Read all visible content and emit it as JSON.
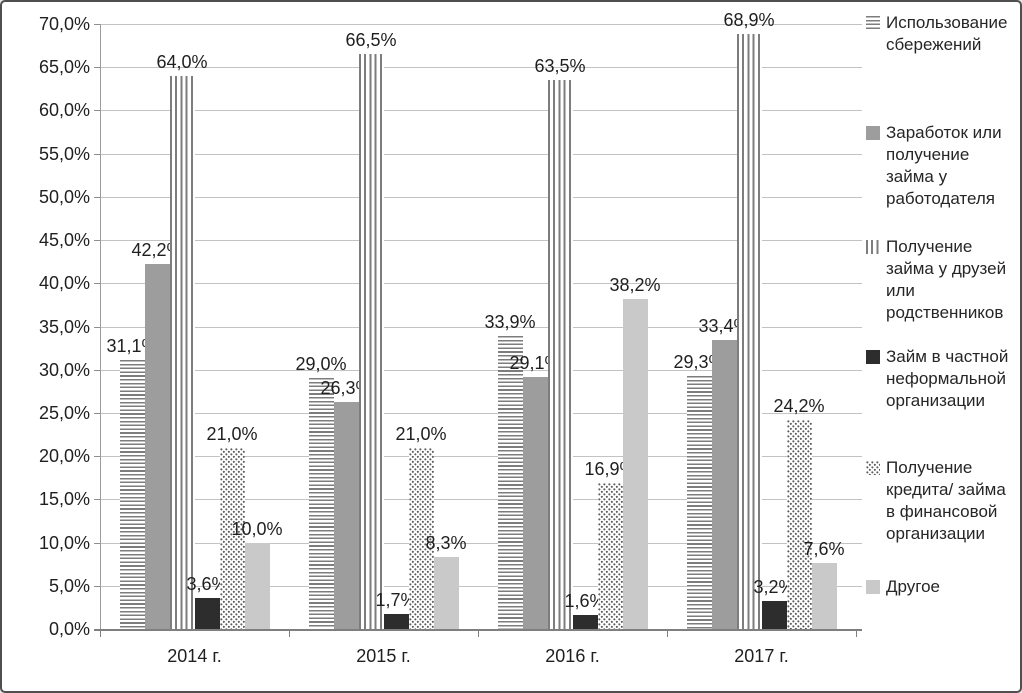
{
  "chart_data": {
    "type": "bar",
    "title": "",
    "xlabel": "",
    "ylabel": "",
    "categories": [
      "2014 г.",
      "2015 г.",
      "2016 г.",
      "2017 г."
    ],
    "series": [
      {
        "name": "Использование сбережений",
        "pattern": "horizontal-stripes",
        "values": [
          31.1,
          29.0,
          33.9,
          29.3
        ]
      },
      {
        "name": "Заработок или получение займа у работодателя",
        "pattern": "solid-gray",
        "values": [
          42.2,
          26.3,
          29.1,
          33.4
        ]
      },
      {
        "name": "Получение займа у друзей или родственников",
        "pattern": "vertical-stripes",
        "values": [
          64.0,
          66.5,
          63.5,
          68.9
        ]
      },
      {
        "name": "Займ в частной неформальной организации",
        "pattern": "solid-black",
        "values": [
          3.6,
          1.7,
          1.6,
          3.2
        ]
      },
      {
        "name": "Получение кредита/ займа в финансовой организации",
        "pattern": "dots",
        "values": [
          21.0,
          21.0,
          16.9,
          24.2
        ]
      },
      {
        "name": "Другое",
        "pattern": "solid-light",
        "values": [
          10.0,
          8.3,
          38.2,
          7.6
        ]
      }
    ],
    "ylim": [
      0,
      70
    ],
    "ytick_step": 5,
    "ytick_labels": [
      "0,0%",
      "5,0%",
      "10,0%",
      "15,0%",
      "20,0%",
      "25,0%",
      "30,0%",
      "35,0%",
      "40,0%",
      "45,0%",
      "50,0%",
      "55,0%",
      "60,0%",
      "65,0%",
      "70,0%"
    ],
    "value_label_format": "comma-decimal-percent",
    "grid": true,
    "data_labels": true,
    "legend_position": "right"
  },
  "colors": {
    "bar_gray": "#9d9d9d",
    "bar_black": "#2d2d2d",
    "bar_light_gray": "#c9c9c9",
    "pattern_stroke": "#7d7d7d",
    "gridline": "#c3c3c3",
    "axis": "#7f7f7f",
    "text": "#1f1f1f",
    "figure_border": "#4f4f4f",
    "background": "#ffffff"
  }
}
